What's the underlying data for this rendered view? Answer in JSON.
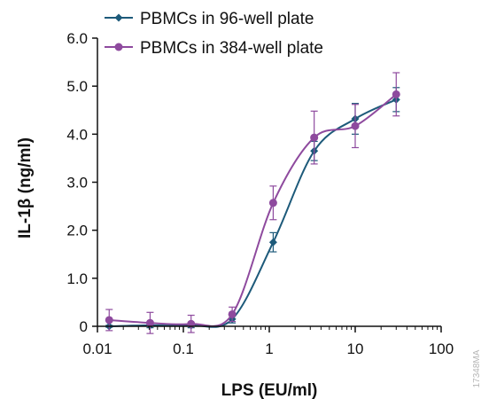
{
  "chart_data": {
    "type": "line",
    "x_scale": "log",
    "xlabel": "LPS (EU/ml)",
    "ylabel": "IL-1β (ng/ml)",
    "x_ticks": [
      "0.01",
      "0.1",
      "1",
      "10",
      "100"
    ],
    "x_tick_values": [
      0.01,
      0.1,
      1,
      10,
      100
    ],
    "y_ticks": [
      "0",
      "1.0",
      "2.0",
      "3.0",
      "4.0",
      "5.0",
      "6.0"
    ],
    "y_tick_values": [
      0,
      1,
      2,
      3,
      4,
      5,
      6
    ],
    "xlim": [
      0.01,
      100
    ],
    "ylim": [
      0,
      6
    ],
    "grid": false,
    "legend_position": "top",
    "series": [
      {
        "name": "PBMCs in 96-well plate",
        "color": "#1d5a7a",
        "marker": "diamond",
        "x": [
          0.0137,
          0.041,
          0.123,
          0.37,
          1.11,
          3.33,
          10,
          30
        ],
        "y": [
          0.0,
          0.02,
          0.02,
          0.15,
          1.75,
          3.65,
          4.32,
          4.72
        ],
        "error": [
          0.02,
          0.05,
          0.05,
          0.08,
          0.2,
          0.2,
          0.32,
          0.25
        ]
      },
      {
        "name": "PBMCs in 384-well plate",
        "color": "#8e4a9e",
        "marker": "circle",
        "x": [
          0.0137,
          0.041,
          0.123,
          0.37,
          1.11,
          3.33,
          10,
          30
        ],
        "y": [
          0.13,
          0.07,
          0.05,
          0.25,
          2.57,
          3.93,
          4.17,
          4.83
        ],
        "error": [
          0.22,
          0.22,
          0.18,
          0.15,
          0.35,
          0.55,
          0.45,
          0.45
        ]
      }
    ]
  },
  "watermark": "17348MA"
}
